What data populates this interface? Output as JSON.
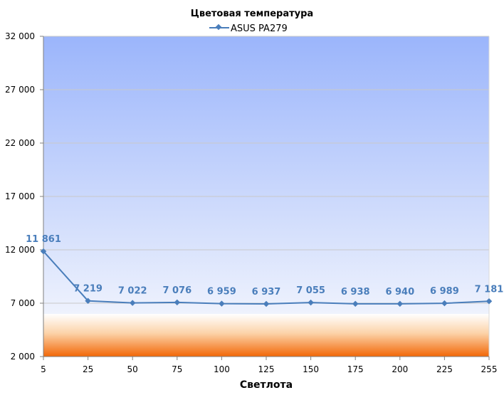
{
  "chart_data": {
    "type": "line",
    "title": "Цветовая температура",
    "xlabel": "Светлота",
    "ylabel": "",
    "categories": [
      "5",
      "25",
      "50",
      "75",
      "100",
      "125",
      "150",
      "175",
      "200",
      "225",
      "255"
    ],
    "series": [
      {
        "name": "ASUS PA279",
        "values": [
          11861,
          7219,
          7022,
          7076,
          6959,
          6937,
          7055,
          6938,
          6940,
          6989,
          7181
        ],
        "labels": [
          "11 861",
          "7 219",
          "7 022",
          "7 076",
          "6 959",
          "6 937",
          "7 055",
          "6 938",
          "6 940",
          "6 989",
          "7 181"
        ],
        "color": "#4a7ebb"
      }
    ],
    "ylim": [
      2000,
      32000
    ],
    "yticks": [
      "2 000",
      "7 000",
      "12 000",
      "17 000",
      "22 000",
      "27 000",
      "32 000"
    ],
    "grid": true,
    "legend": "top"
  }
}
